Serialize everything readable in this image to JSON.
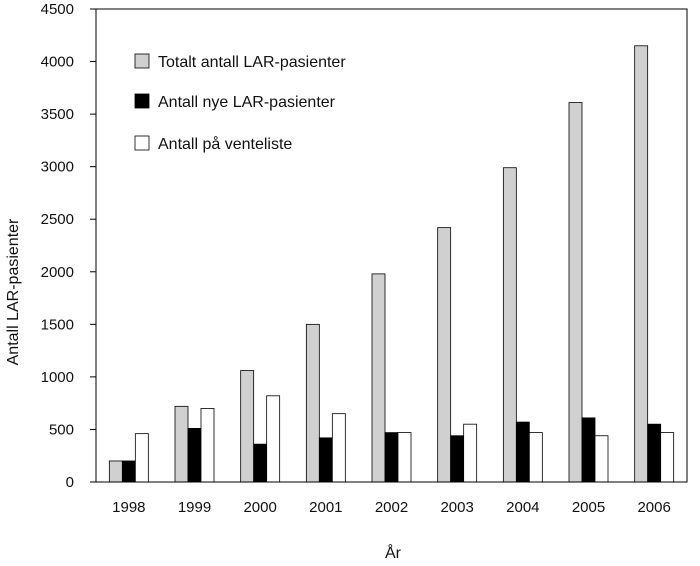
{
  "chart_data": {
    "type": "bar",
    "title": "",
    "xlabel": "År",
    "ylabel": "Antall LAR-pasienter",
    "ylim": [
      0,
      4500
    ],
    "yticks": [
      0,
      500,
      1000,
      1500,
      2000,
      2500,
      3000,
      3500,
      4000,
      4500
    ],
    "grid": false,
    "legend_position": "top-left",
    "categories": [
      "1998",
      "1999",
      "2000",
      "2001",
      "2002",
      "2003",
      "2004",
      "2005",
      "2006"
    ],
    "series": [
      {
        "name": "Totalt antall LAR-pasienter",
        "color": "#d0d0d0",
        "values": [
          200,
          720,
          1060,
          1500,
          1980,
          2420,
          2990,
          3610,
          4150
        ]
      },
      {
        "name": "Antall nye LAR-pasienter",
        "color": "#000000",
        "values": [
          200,
          510,
          360,
          420,
          470,
          440,
          570,
          610,
          550
        ]
      },
      {
        "name": "Antall på venteliste",
        "color": "#ffffff",
        "values": [
          460,
          700,
          820,
          650,
          470,
          550,
          470,
          440,
          470
        ]
      }
    ]
  }
}
